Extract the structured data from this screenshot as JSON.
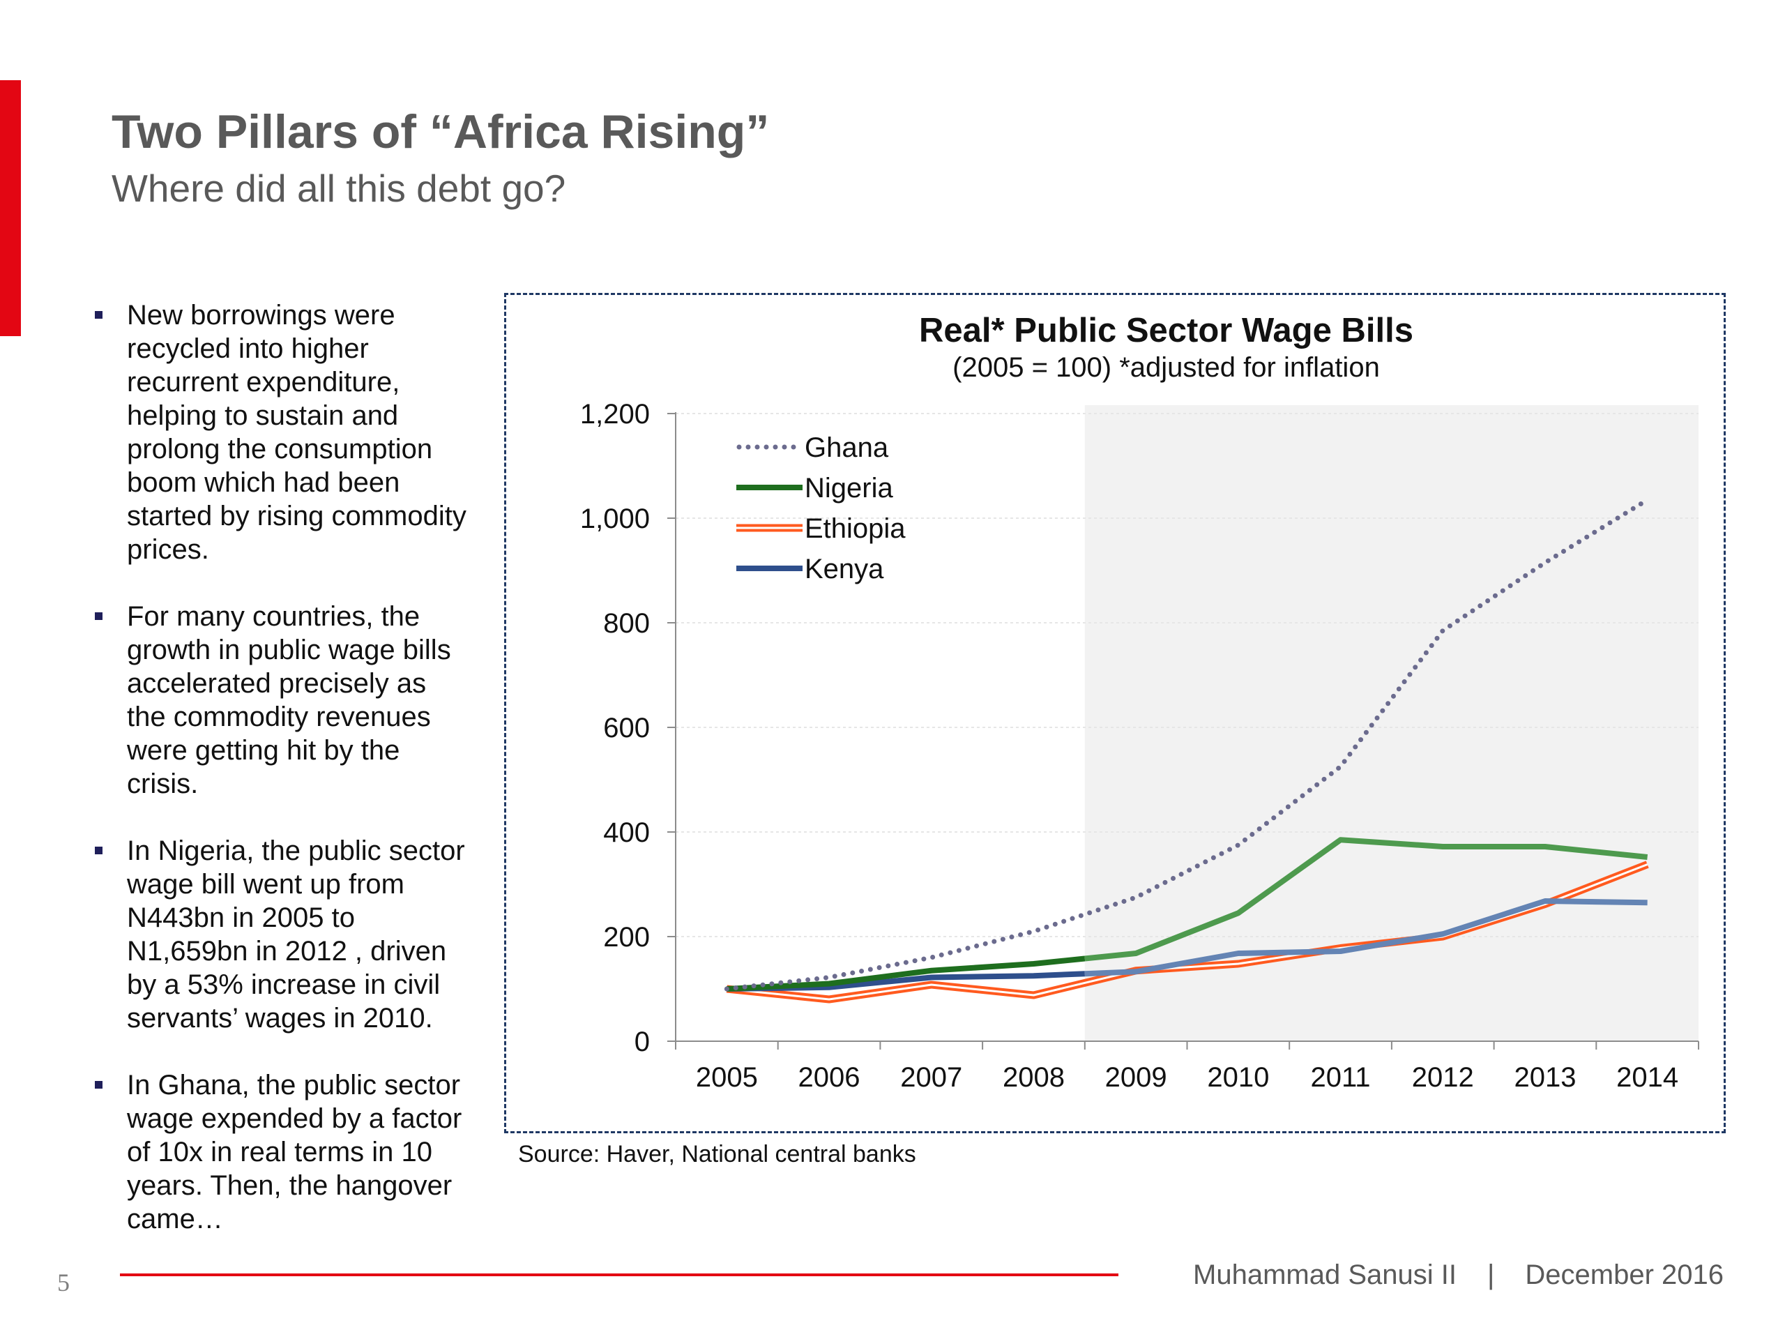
{
  "slide": {
    "title": "Two Pillars of “Africa Rising”",
    "subtitle": "Where did all this debt go?",
    "page_number": "5",
    "accent_color": "#e30613",
    "footer": {
      "author": "Muhammad Sanusi II",
      "separator": "|",
      "date": "December 2016"
    }
  },
  "bullets": [
    "New borrowings were recycled into higher recurrent expenditure, helping to sustain and prolong the consumption boom which had been started by rising commodity prices.",
    "For many countries, the growth in public wage bills accelerated precisely as the commodity revenues were getting hit by the crisis.",
    "In Nigeria, the public sector wage bill went up from N443bn in 2005 to N1,659bn in 2012 , driven by a 53% increase in civil servants’ wages in 2010.",
    "In Ghana, the public sector wage expended by a factor of 10x in real terms in 10 years. Then, the hangover came…"
  ],
  "source": "Source: Haver, National central banks",
  "chart_data": {
    "type": "line",
    "title": "Real* Public Sector Wage Bills",
    "subtitle": "(2005 = 100) *adjusted for inflation",
    "categories": [
      "2005",
      "2006",
      "2007",
      "2008",
      "2009",
      "2010",
      "2011",
      "2012",
      "2013",
      "2014"
    ],
    "ylim": [
      0,
      1200
    ],
    "yticks": [
      0,
      200,
      400,
      600,
      800,
      1000,
      1200
    ],
    "ytick_labels": [
      "0",
      "200",
      "400",
      "600",
      "800",
      "1,000",
      "1,200"
    ],
    "shaded_region": {
      "from": "2009",
      "to": "2014",
      "color": "#f2f2f2"
    },
    "legend_position": "top-left",
    "grid": true,
    "series": [
      {
        "name": "Ghana",
        "style": "dotted",
        "color": "#6b6b8e",
        "values": [
          100,
          122,
          160,
          210,
          275,
          375,
          525,
          785,
          915,
          1035
        ]
      },
      {
        "name": "Nigeria",
        "style": "solid",
        "color": "#1e6e1e",
        "color_shaded": "#4e9a4e",
        "values": [
          100,
          110,
          135,
          148,
          168,
          245,
          385,
          372,
          372,
          352
        ]
      },
      {
        "name": "Ethiopia",
        "style": "double",
        "color": "#ff5a1f",
        "values": [
          100,
          80,
          108,
          88,
          135,
          148,
          178,
          200,
          262,
          338
        ]
      },
      {
        "name": "Kenya",
        "style": "solid",
        "color": "#2e4f8c",
        "color_shaded": "#6484b4",
        "values": [
          100,
          103,
          122,
          125,
          133,
          168,
          172,
          205,
          268,
          265
        ]
      }
    ]
  }
}
